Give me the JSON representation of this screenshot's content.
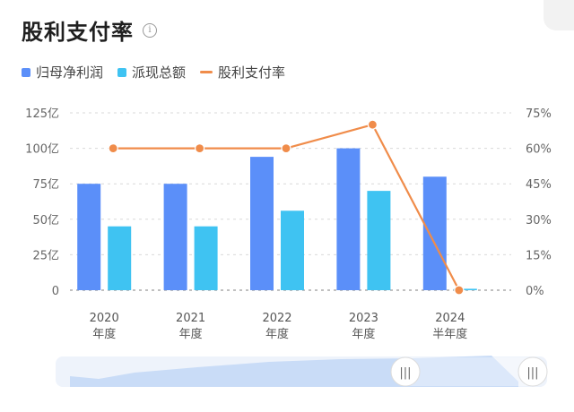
{
  "chart_data": {
    "type": "bar",
    "title": "股利支付率",
    "categories": [
      {
        "line1": "2020",
        "line2": "年度"
      },
      {
        "line1": "2021",
        "line2": "年度"
      },
      {
        "line1": "2022",
        "line2": "年度"
      },
      {
        "line1": "2023",
        "line2": "年度"
      },
      {
        "line1": "2024",
        "line2": "半年度"
      }
    ],
    "series": [
      {
        "name": "归母净利润",
        "kind": "bar",
        "axis": "left",
        "color": "#5b8ff9",
        "values": [
          75,
          75,
          94,
          100,
          80
        ]
      },
      {
        "name": "派现总额",
        "kind": "bar",
        "axis": "left",
        "color": "#3fc3f2",
        "values": [
          45,
          45,
          56,
          70,
          1
        ]
      },
      {
        "name": "股利支付率",
        "kind": "line",
        "axis": "right",
        "color": "#f08c4a",
        "values": [
          60,
          60,
          60,
          70,
          0
        ]
      }
    ],
    "y_left": {
      "min": 0,
      "max": 125,
      "ticks": [
        0,
        25,
        50,
        75,
        100,
        125
      ],
      "tick_labels": [
        "0",
        "25亿",
        "50亿",
        "75亿",
        "100亿",
        "125亿"
      ]
    },
    "y_right": {
      "min": 0,
      "max": 75,
      "ticks": [
        0,
        15,
        30,
        45,
        60,
        75
      ],
      "tick_labels": [
        "0%",
        "15%",
        "30%",
        "45%",
        "60%",
        "75%"
      ]
    },
    "grid": true,
    "legend_position": "top-left"
  },
  "slider": {
    "left_handle_glyph": "|||",
    "right_handle_glyph": "|||"
  },
  "colors": {
    "slider_bg": "#eef3fb",
    "slider_fill": "#c9dcf7",
    "grid": "#d9d9d9"
  }
}
